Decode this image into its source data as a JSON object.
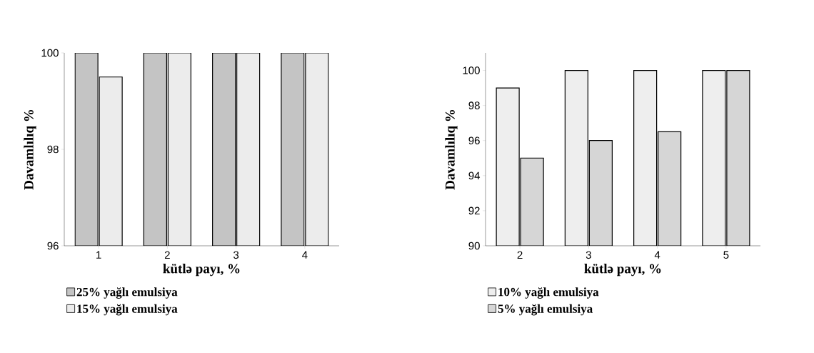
{
  "chart_data": [
    {
      "type": "bar",
      "categories": [
        "1",
        "2",
        "3",
        "4"
      ],
      "xlabel": "kütlə payı, %",
      "ylabel": "Davamlılıq %",
      "ylim": [
        96,
        100
      ],
      "yticks": [
        96,
        98,
        100
      ],
      "legend": "bottom",
      "series": [
        {
          "name": "25% yağlı emulsiya",
          "color": "#c4c4c4",
          "values": [
            100,
            100,
            100,
            100
          ]
        },
        {
          "name": "15% yağlı emulsiya",
          "color": "#ececec",
          "values": [
            99.5,
            100,
            100,
            100
          ]
        }
      ]
    },
    {
      "type": "bar",
      "categories": [
        "2",
        "3",
        "4",
        "5"
      ],
      "xlabel": "kütlə payı, %",
      "ylabel": "Davamlılıq %",
      "ylim": [
        90,
        101
      ],
      "yticks": [
        90,
        92,
        94,
        96,
        98,
        100
      ],
      "legend": "bottom",
      "series": [
        {
          "name": "10% yağlı emulsiya",
          "color": "#eeeeee",
          "values": [
            99,
            100,
            100,
            100
          ]
        },
        {
          "name": "5% yağlı emulsiya",
          "color": "#d6d6d6",
          "values": [
            95,
            96,
            96.5,
            100
          ]
        }
      ]
    }
  ]
}
